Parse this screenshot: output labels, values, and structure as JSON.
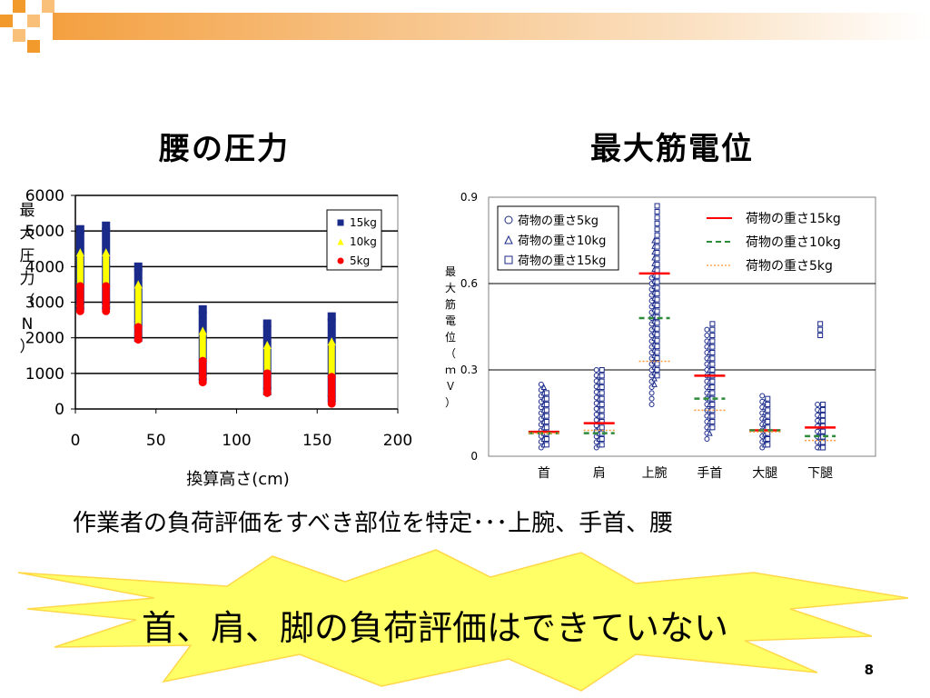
{
  "slide": {
    "left_title": "腰の圧力",
    "right_title": "最大筋電位",
    "statement": "作業者の負荷評価をすべき部位を特定･･･上腕、手首、腰",
    "conclusion": "首、肩、脚の負荷評価はできていない",
    "page_number": "8"
  },
  "colors": {
    "accent_orange": "#f39a2c",
    "burst_yellow": "#ffff66",
    "navy": "#1a2a8a",
    "yellow": "#ffff00",
    "red": "#ff0000",
    "green": "#2e8b3a",
    "orange_dotted": "#ff9933"
  },
  "chart_data": [
    {
      "type": "scatter",
      "title": "",
      "xlabel": "換算高さ(cm)",
      "ylabel": "最大圧力（N）",
      "xlim": [
        0,
        200
      ],
      "ylim": [
        0,
        6000
      ],
      "xticks": [
        "0",
        "50",
        "100",
        "150",
        "200"
      ],
      "yticks": [
        "0",
        "1000",
        "2000",
        "3000",
        "4000",
        "5000",
        "6000"
      ],
      "grid": "horizontal",
      "legend_position": "top-right",
      "series": [
        {
          "name": "15kg",
          "color": "#1a2a8a",
          "marker": "square",
          "ranges": [
            [
              3,
              2900,
              5050
            ],
            [
              19,
              2900,
              5150
            ],
            [
              39,
              2000,
              4000
            ],
            [
              79,
              900,
              2800
            ],
            [
              119,
              500,
              2400
            ],
            [
              159,
              300,
              2600
            ]
          ]
        },
        {
          "name": "10kg",
          "color": "#ffff00",
          "marker": "triangle",
          "ranges": [
            [
              3,
              3000,
              4400
            ],
            [
              19,
              3000,
              4400
            ],
            [
              39,
              2200,
              3500
            ],
            [
              79,
              1000,
              2200
            ],
            [
              119,
              600,
              1800
            ],
            [
              159,
              500,
              1900
            ]
          ]
        },
        {
          "name": "5kg",
          "color": "#ff0000",
          "marker": "circle",
          "ranges": [
            [
              3,
              2750,
              3450
            ],
            [
              19,
              2750,
              3450
            ],
            [
              39,
              1950,
              2300
            ],
            [
              79,
              750,
              1350
            ],
            [
              119,
              450,
              1000
            ],
            [
              159,
              150,
              900
            ]
          ]
        }
      ]
    },
    {
      "type": "scatter",
      "title": "",
      "xlabel": "",
      "ylabel": "最大筋電位（ｍＶ）",
      "ylim": [
        0,
        0.9
      ],
      "yticks": [
        "0",
        "0.3",
        "0.6",
        "0.9"
      ],
      "categories": [
        "首",
        "肩",
        "上腕",
        "手首",
        "大腿",
        "下腿"
      ],
      "grid": "horizontal",
      "legend_position": "top",
      "series": [
        {
          "name": "荷物の重さ5kg",
          "marker": "circle",
          "color": "#1a2a8a",
          "ranges": [
            [
              0.03,
              0.25
            ],
            [
              0.03,
              0.3
            ],
            [
              0.18,
              0.62
            ],
            [
              0.06,
              0.44
            ],
            [
              0.03,
              0.21
            ],
            [
              0.03,
              0.18
            ]
          ]
        },
        {
          "name": "荷物の重さ10kg",
          "marker": "triangle",
          "color": "#1a2a8a",
          "ranges": [
            [
              0.04,
              0.24
            ],
            [
              0.04,
              0.28
            ],
            [
              0.25,
              0.75
            ],
            [
              0.08,
              0.4
            ],
            [
              0.04,
              0.19
            ],
            [
              0.03,
              0.16
            ]
          ]
        },
        {
          "name": "荷物の重さ15kg",
          "marker": "square",
          "color": "#1a2a8a",
          "ranges": [
            [
              0.04,
              0.22
            ],
            [
              0.04,
              0.3
            ],
            [
              0.28,
              0.87
            ],
            [
              0.1,
              0.46
            ],
            [
              0.04,
              0.2
            ],
            [
              0.03,
              0.18
            ]
          ],
          "outliers": [
            [
              5,
              0.42
            ],
            [
              5,
              0.44
            ],
            [
              5,
              0.46
            ]
          ]
        }
      ],
      "mean_series": [
        {
          "name": "荷物の重さ15kg",
          "line": "solid",
          "color": "#ff0000",
          "values": [
            0.085,
            0.115,
            0.635,
            0.28,
            0.09,
            0.1
          ]
        },
        {
          "name": "荷物の重さ10kg",
          "line": "dashed",
          "color": "#2e8b3a",
          "values": [
            0.08,
            0.08,
            0.48,
            0.2,
            0.09,
            0.07
          ]
        },
        {
          "name": "荷物の重さ5kg",
          "line": "dotted",
          "color": "#ff9933",
          "values": [
            0.08,
            0.09,
            0.33,
            0.16,
            0.085,
            0.055
          ]
        }
      ]
    }
  ]
}
